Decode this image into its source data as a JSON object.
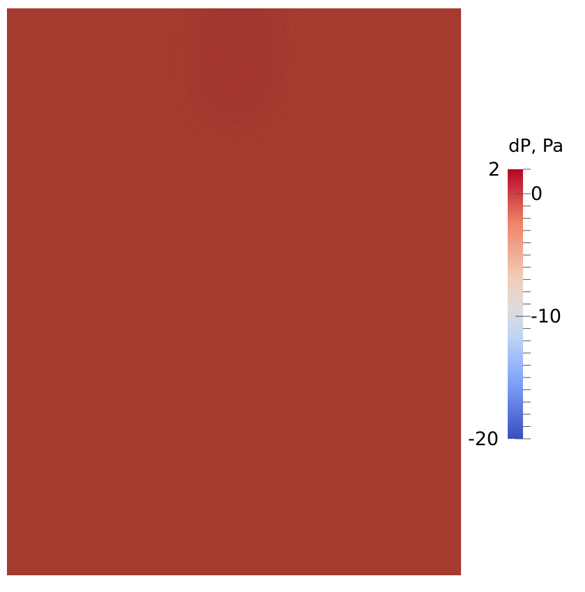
{
  "scalar_bar": {
    "title": "dP, Pa",
    "range": [
      -20,
      2
    ],
    "labels": {
      "max": "2",
      "zero": "0",
      "mid": "-10",
      "min": "-20"
    },
    "colormap_stops": [
      "#3b4cc0",
      "#7b9ff9",
      "#c0d4f5",
      "#dddddd",
      "#f2cbb7",
      "#ee8468",
      "#b40426"
    ]
  },
  "field": {
    "variable": "dP",
    "background_color": "#a53b2f",
    "plume_color": "#a2362f"
  }
}
